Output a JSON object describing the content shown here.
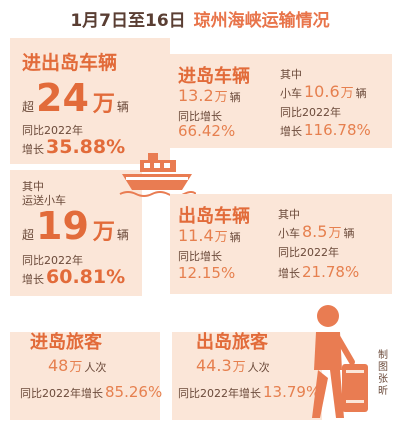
{
  "title": {
    "date": "1月7日至16日",
    "main": "琼州海峡运输情况"
  },
  "colors": {
    "accent": "#e26b3a",
    "panel": "#fbe6d8",
    "text": "#6b4a3a"
  },
  "vehicles_total": {
    "heading": "进出岛车辆",
    "prefix": "超",
    "value": "24",
    "unit": "万",
    "suffix": "辆",
    "compare": "同比2022年",
    "growth_label": "增长",
    "growth": "35.88%"
  },
  "small_cars": {
    "note": "其中",
    "label": "运送小车",
    "prefix": "超",
    "value": "19",
    "unit": "万",
    "suffix": "辆",
    "compare": "同比2022年",
    "growth_label": "增长",
    "growth": "60.81%"
  },
  "inbound_vehicles": {
    "heading": "进岛车辆",
    "value": "13.2",
    "unit": "万",
    "suffix": "辆",
    "compare": "同比增长",
    "growth": "66.42%",
    "note": "其中",
    "car_label": "小车",
    "car_value": "10.6",
    "car_unit": "万",
    "car_suffix": "辆",
    "car_compare": "同比2022年",
    "car_growth_label": "增长",
    "car_growth": "116.78%"
  },
  "outbound_vehicles": {
    "heading": "出岛车辆",
    "value": "11.4",
    "unit": "万",
    "suffix": "辆",
    "compare": "同比增长",
    "growth": "12.15%",
    "note": "其中",
    "car_label": "小车",
    "car_value": "8.5",
    "car_unit": "万",
    "car_suffix": "辆",
    "car_compare": "同比2022年",
    "car_growth_label": "增长",
    "car_growth": "21.78%"
  },
  "inbound_passengers": {
    "heading": "进岛旅客",
    "value": "48",
    "unit": "万",
    "suffix": "人次",
    "compare": "同比2022年增长",
    "growth": "85.26%"
  },
  "outbound_passengers": {
    "heading": "出岛旅客",
    "value": "44.3",
    "unit": "万",
    "suffix": "人次",
    "compare": "同比2022年增长",
    "growth": "13.79%"
  },
  "credit": "制图 张昕",
  "icons": [
    "ship-icon",
    "traveler-icon"
  ]
}
